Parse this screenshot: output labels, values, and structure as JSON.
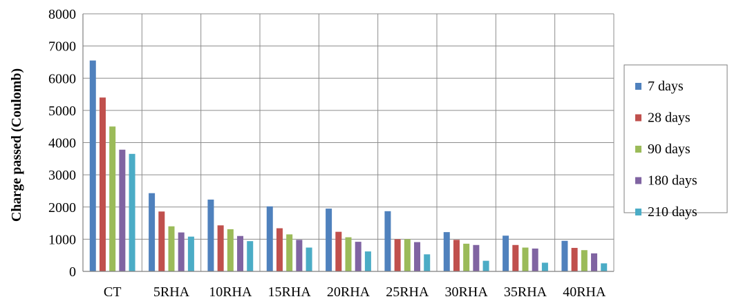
{
  "chart_data": {
    "type": "bar",
    "title": "",
    "xlabel": "",
    "ylabel": "Charge passed (Coulomb)",
    "ylim": [
      0,
      8000
    ],
    "yticks": [
      0,
      1000,
      2000,
      3000,
      4000,
      5000,
      6000,
      7000,
      8000
    ],
    "grid": true,
    "legend_position": "right",
    "categories": [
      "CT",
      "5RHA",
      "10RHA",
      "15RHA",
      "20RHA",
      "25RHA",
      "30RHA",
      "35RHA",
      "40RHA"
    ],
    "series": [
      {
        "name": "7 days",
        "color": "#4f81bd",
        "values": [
          6550,
          2430,
          2230,
          2020,
          1950,
          1870,
          1220,
          1110,
          950
        ]
      },
      {
        "name": "28 days",
        "color": "#c0504d",
        "values": [
          5400,
          1860,
          1430,
          1340,
          1230,
          1000,
          980,
          820,
          730
        ]
      },
      {
        "name": "90 days",
        "color": "#9bbb59",
        "values": [
          4500,
          1400,
          1310,
          1150,
          1060,
          1000,
          860,
          740,
          660
        ]
      },
      {
        "name": "180 days",
        "color": "#8064a2",
        "values": [
          3780,
          1210,
          1100,
          980,
          920,
          910,
          820,
          710,
          560
        ]
      },
      {
        "name": "210 days",
        "color": "#4bacc6",
        "values": [
          3650,
          1080,
          940,
          740,
          620,
          530,
          330,
          270,
          250
        ]
      }
    ]
  }
}
